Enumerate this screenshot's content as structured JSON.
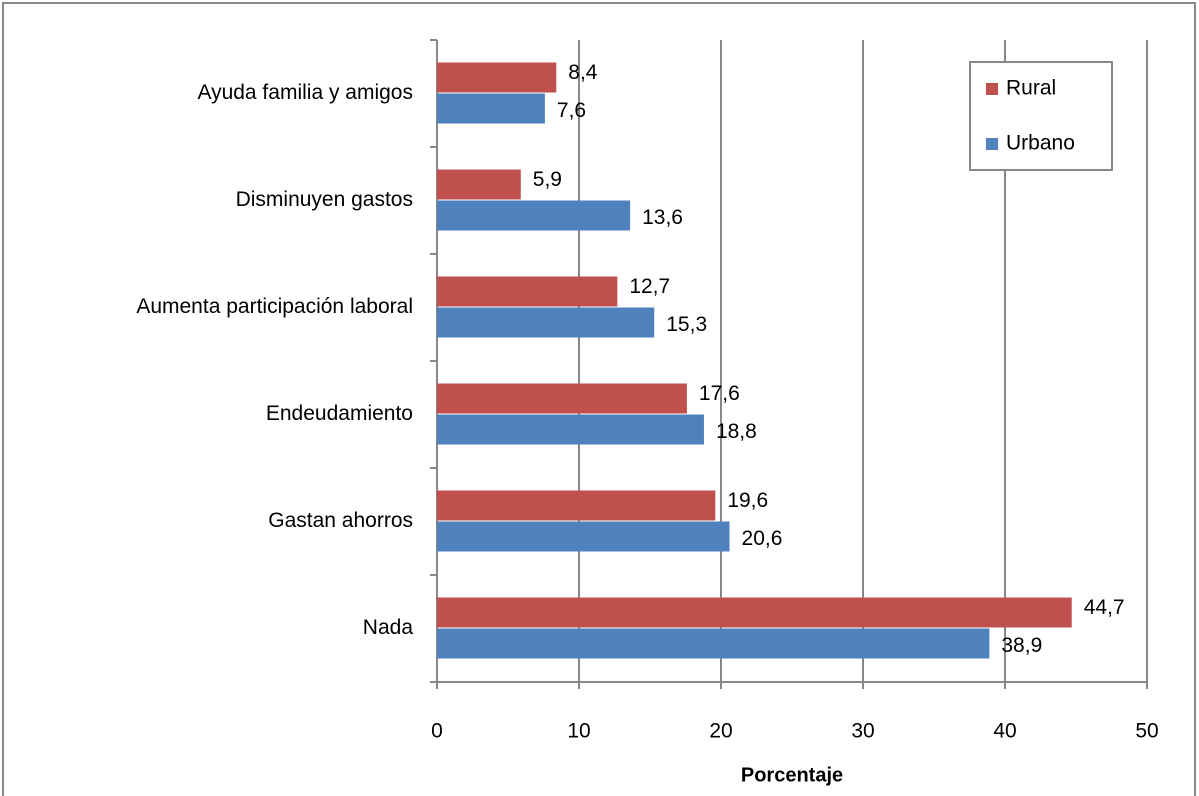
{
  "chart_data": {
    "type": "barh",
    "xlabel": "Porcentaje",
    "categories": [
      "Ayuda familia  y amigos",
      "Disminuyen gastos",
      "Aumenta participación laboral",
      "Endeudamiento",
      "Gastan ahorros",
      "Nada"
    ],
    "series": [
      {
        "name": "Rural",
        "color": "#c0504d",
        "values": [
          8.4,
          5.9,
          12.7,
          17.6,
          19.6,
          44.7
        ],
        "value_labels": [
          "8,4",
          "5,9",
          "12,7",
          "17,6",
          "19,6",
          "44,7"
        ]
      },
      {
        "name": "Urbano",
        "color": "#4f81bd",
        "values": [
          7.6,
          13.6,
          15.3,
          18.8,
          20.6,
          38.9
        ],
        "value_labels": [
          "7,6",
          "13,6",
          "15,3",
          "18,8",
          "20,6",
          "38,9"
        ]
      }
    ],
    "xlim": [
      0,
      50
    ],
    "xticks": [
      0,
      10,
      20,
      30,
      40,
      50
    ],
    "grid": true,
    "legend": "upper right"
  }
}
